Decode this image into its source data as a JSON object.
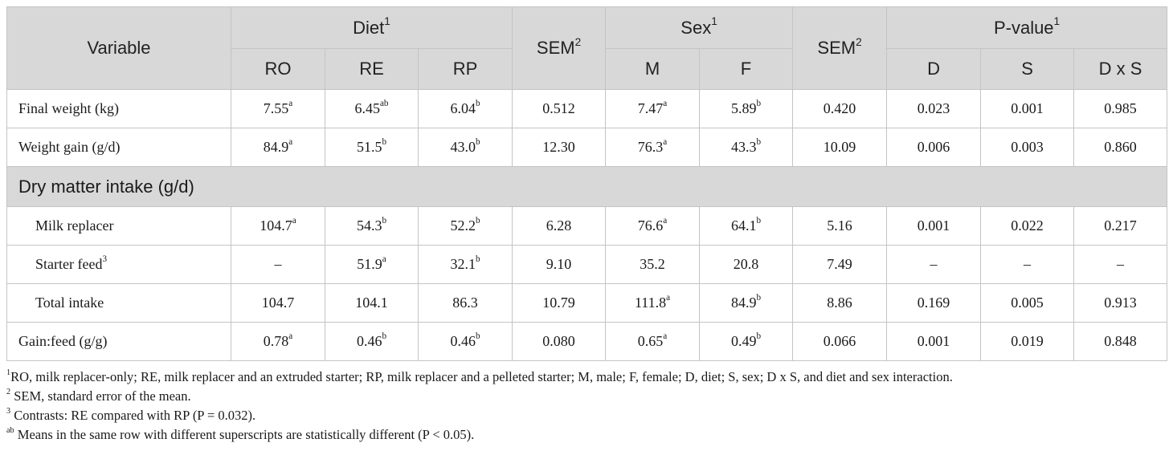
{
  "header": {
    "variable": "Variable",
    "diet": "Diet",
    "diet_sup": "1",
    "sem": "SEM",
    "sem_sup": "2",
    "sex": "Sex",
    "sex_sup": "1",
    "pvalue": "P-value",
    "pvalue_sup": "1",
    "ro": "RO",
    "re": "RE",
    "rp": "RP",
    "m": "M",
    "f": "F",
    "d": "D",
    "s": "S",
    "dxs": "D x S"
  },
  "rows": {
    "final_weight": {
      "label": "Final weight (kg)",
      "ro": "7.55",
      "ro_sup": "a",
      "re": "6.45",
      "re_sup": "ab",
      "rp": "6.04",
      "rp_sup": "b",
      "sem1": "0.512",
      "m": "7.47",
      "m_sup": "a",
      "f": "5.89",
      "f_sup": "b",
      "sem2": "0.420",
      "d": "0.023",
      "s": "0.001",
      "dxs": "0.985"
    },
    "weight_gain": {
      "label": "Weight gain (g/d)",
      "ro": "84.9",
      "ro_sup": "a",
      "re": "51.5",
      "re_sup": "b",
      "rp": "43.0",
      "rp_sup": "b",
      "sem1": "12.30",
      "m": "76.3",
      "m_sup": "a",
      "f": "43.3",
      "f_sup": "b",
      "sem2": "10.09",
      "d": "0.006",
      "s": "0.003",
      "dxs": "0.860"
    },
    "section_dmi": "Dry matter intake (g/d)",
    "milk_replacer": {
      "label": "Milk replacer",
      "ro": "104.7",
      "ro_sup": "a",
      "re": "54.3",
      "re_sup": "b",
      "rp": "52.2",
      "rp_sup": "b",
      "sem1": "6.28",
      "m": "76.6",
      "m_sup": "a",
      "f": "64.1",
      "f_sup": "b",
      "sem2": "5.16",
      "d": "0.001",
      "s": "0.022",
      "dxs": "0.217"
    },
    "starter_feed": {
      "label": "Starter feed",
      "label_sup": "3",
      "ro": "–",
      "re": "51.9",
      "re_sup": "a",
      "rp": "32.1",
      "rp_sup": "b",
      "sem1": "9.10",
      "m": "35.2",
      "f": "20.8",
      "sem2": "7.49",
      "d": "–",
      "s": "–",
      "dxs": "–"
    },
    "total_intake": {
      "label": "Total intake",
      "ro": "104.7",
      "re": "104.1",
      "rp": "86.3",
      "sem1": "10.79",
      "m": "111.8",
      "m_sup": "a",
      "f": "84.9",
      "f_sup": "b",
      "sem2": "8.86",
      "d": "0.169",
      "s": "0.005",
      "dxs": "0.913"
    },
    "gain_feed": {
      "label": "Gain:feed (g/g)",
      "ro": "0.78",
      "ro_sup": "a",
      "re": "0.46",
      "re_sup": "b",
      "rp": "0.46",
      "rp_sup": "b",
      "sem1": "0.080",
      "m": "0.65",
      "m_sup": "a",
      "f": "0.49",
      "f_sup": "b",
      "sem2": "0.066",
      "d": "0.001",
      "s": "0.019",
      "dxs": "0.848"
    }
  },
  "footnotes": {
    "n1_sup": "1",
    "n1": "RO, milk replacer-only; RE, milk replacer and an extruded starter; RP, milk replacer and a pelleted starter; M, male; F, female; D, diet; S, sex; D x S, and diet and sex interaction.",
    "n2_sup": "2",
    "n2": " SEM, standard error of the mean.",
    "n3_sup": "3",
    "n3": " Contrasts: RE compared with RP (P = 0.032).",
    "nab_sup": "ab",
    "nab": " Means in the same row with different superscripts are statistically different (P < 0.05)."
  }
}
